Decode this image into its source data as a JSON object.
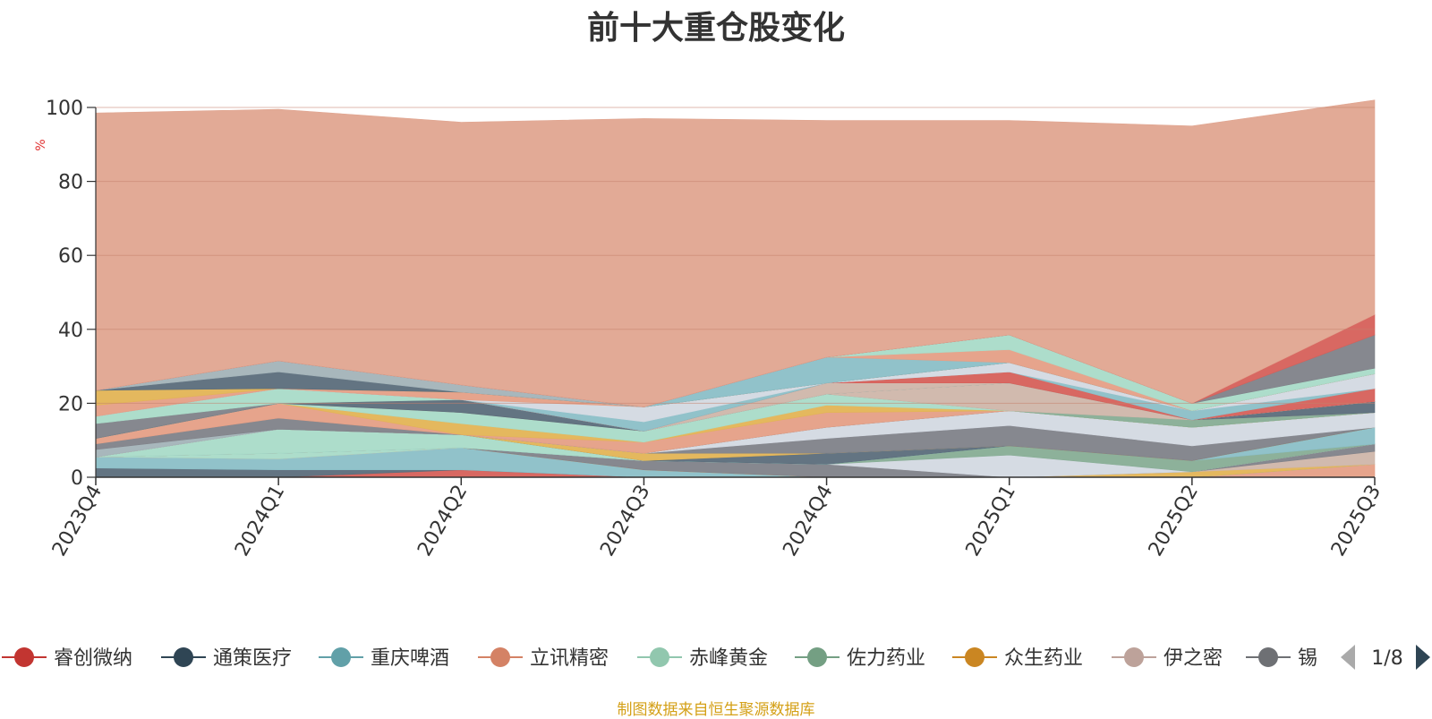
{
  "title": "前十大重仓股变化",
  "source_note": "制图数据来自恒生聚源数据库",
  "chart_data": {
    "type": "area",
    "stacked": true,
    "xlabel": "",
    "ylabel": "%",
    "ylim": [
      0,
      100
    ],
    "yticks": [
      0,
      20,
      40,
      60,
      80,
      100
    ],
    "grid": true,
    "categories": [
      "2023Q4",
      "2024Q1",
      "2024Q2",
      "2024Q3",
      "2024Q4",
      "2025Q1",
      "2025Q2",
      "2025Q3"
    ],
    "series": [
      {
        "name": "睿创微纳",
        "color": "#d6605a",
        "values": [
          0,
          0,
          2,
          0,
          0,
          0,
          0,
          0
        ]
      },
      {
        "name": "通策医疗",
        "color": "#5b6d7b",
        "values": [
          2.5,
          2,
          0,
          0,
          0,
          0,
          0,
          0
        ]
      },
      {
        "name": "重庆啤酒",
        "color": "#8bbfc7",
        "values": [
          3,
          3,
          6,
          2,
          0,
          0,
          0,
          0
        ]
      },
      {
        "name": "立讯精密",
        "color": "#e59f86",
        "values": [
          0,
          0,
          0,
          0,
          0,
          0,
          0,
          3.5
        ]
      },
      {
        "name": "赤峰黄金",
        "color": "#a9dbc8",
        "values": [
          0,
          1.5,
          0,
          0,
          0,
          0,
          0,
          0
        ]
      },
      {
        "name": "佐力药业",
        "color": "#87ad95",
        "values": [
          0,
          0,
          0,
          0,
          0,
          0,
          0,
          0
        ]
      },
      {
        "name": "众生药业",
        "color": "#e3b455",
        "values": [
          0,
          0,
          0,
          0,
          0,
          0,
          1.5,
          0
        ]
      },
      {
        "name": "伊之密",
        "color": "#cfb6aa",
        "values": [
          0,
          0,
          0,
          0,
          0,
          0,
          0,
          3.5
        ]
      },
      {
        "name": "锡",
        "color": "#808289",
        "values": [
          0,
          0,
          0,
          2.5,
          3.5,
          0,
          0,
          2
        ]
      },
      {
        "color": "#d3d9e2",
        "values": [
          0,
          0,
          0,
          0,
          0,
          6,
          0,
          0
        ]
      },
      {
        "color": "#87ad95",
        "values": [
          0,
          0,
          0,
          0,
          0,
          2.5,
          3,
          0
        ]
      },
      {
        "color": "#8bbfc7",
        "values": [
          0,
          0,
          0,
          0,
          0,
          0,
          0,
          4.5
        ]
      },
      {
        "color": "#a9dbc8",
        "values": [
          0,
          6.5,
          3.5,
          0,
          0,
          0,
          0,
          0
        ]
      },
      {
        "color": "#5b6d7b",
        "values": [
          0,
          0,
          0,
          0,
          3,
          0,
          0,
          0
        ]
      },
      {
        "color": "#e3b455",
        "values": [
          0,
          0,
          0,
          2,
          0,
          0,
          0,
          0
        ]
      },
      {
        "color": "#808289",
        "values": [
          0,
          0,
          0,
          0,
          4,
          5.5,
          4,
          0
        ]
      },
      {
        "color": "#d3d9e2",
        "values": [
          0,
          0,
          0,
          0,
          3,
          4,
          5,
          4
        ]
      },
      {
        "color": "#a3b3b8",
        "values": [
          2,
          0,
          0,
          0,
          0,
          0,
          0,
          0
        ]
      },
      {
        "color": "#808289",
        "values": [
          1.5,
          3,
          0,
          0,
          0,
          0,
          0,
          0
        ]
      },
      {
        "color": "#e59f86",
        "values": [
          1.5,
          4,
          0,
          3,
          4,
          0,
          0,
          0
        ]
      },
      {
        "color": "#e3b455",
        "values": [
          0,
          0,
          3,
          0,
          2,
          0,
          0,
          0
        ]
      },
      {
        "color": "#a9dbc8",
        "values": [
          0,
          0,
          3,
          3,
          3,
          0,
          0,
          0
        ]
      },
      {
        "color": "#87ad95",
        "values": [
          0,
          0,
          0,
          0,
          0,
          0,
          2,
          0
        ]
      },
      {
        "color": "#cfb6aa",
        "values": [
          0,
          0,
          0,
          0,
          0,
          7.5,
          0,
          0
        ]
      },
      {
        "color": "#5b6d7b",
        "values": [
          0,
          0,
          3.5,
          0,
          0,
          0,
          0,
          3
        ]
      },
      {
        "color": "#808289",
        "values": [
          4,
          0,
          0,
          0,
          0,
          0,
          0,
          0
        ]
      },
      {
        "color": "#a9dbc8",
        "values": [
          2,
          4,
          0,
          0,
          0,
          0,
          0,
          0
        ]
      },
      {
        "color": "#cfb6aa",
        "values": [
          0,
          0,
          0,
          0,
          3,
          0,
          0,
          0
        ]
      },
      {
        "color": "#d6605a",
        "values": [
          0,
          0,
          0,
          0,
          0,
          3,
          0,
          3.5
        ]
      },
      {
        "color": "#8bbfc7",
        "values": [
          0,
          0,
          0,
          2.5,
          0,
          0,
          2.5,
          0
        ]
      },
      {
        "color": "#d3d9e2",
        "values": [
          0,
          0,
          0,
          4,
          0,
          2.5,
          0,
          4
        ]
      },
      {
        "color": "#e59f86",
        "values": [
          3,
          0,
          2,
          0,
          0,
          0,
          0,
          0
        ]
      },
      {
        "color": "#e3b455",
        "values": [
          4,
          0,
          0,
          0,
          0,
          0,
          0,
          0
        ]
      },
      {
        "color": "#5b6d7b",
        "values": [
          0,
          4.5,
          0,
          0,
          0,
          0,
          0,
          0
        ]
      },
      {
        "color": "#a3b3b8",
        "values": [
          0,
          3,
          2,
          0,
          0,
          0,
          0,
          0
        ]
      },
      {
        "color": "#8bbfc7",
        "values": [
          0,
          0,
          0,
          0,
          7,
          0,
          0,
          0
        ]
      },
      {
        "color": "#e59f86",
        "values": [
          0,
          0,
          0,
          0,
          0,
          3.5,
          0,
          0
        ]
      },
      {
        "color": "#a9dbc8",
        "values": [
          0,
          0,
          0,
          0,
          0,
          4,
          2,
          1.5
        ]
      },
      {
        "color": "#808289",
        "values": [
          0,
          0,
          0,
          0,
          0,
          0,
          0,
          9
        ]
      },
      {
        "color": "#d6605a",
        "values": [
          0,
          0,
          0,
          0,
          0,
          0,
          0,
          5.5
        ]
      },
      {
        "color": "#e0a590",
        "values": [
          75,
          68,
          71,
          78,
          64,
          58,
          75,
          58
        ]
      }
    ]
  },
  "legend": {
    "items": [
      {
        "label": "睿创微纳",
        "color": "#c23531"
      },
      {
        "label": "通策医疗",
        "color": "#2f4554"
      },
      {
        "label": "重庆啤酒",
        "color": "#61a0a8"
      },
      {
        "label": "立讯精密",
        "color": "#d48265"
      },
      {
        "label": "赤峰黄金",
        "color": "#91c7ae"
      },
      {
        "label": "佐力药业",
        "color": "#749f83"
      },
      {
        "label": "众生药业",
        "color": "#ca8622"
      },
      {
        "label": "伊之密",
        "color": "#bda29a"
      },
      {
        "label": "锡",
        "color": "#6e7074"
      }
    ],
    "page_label": "1/8",
    "prev_icon": "triangle-left-icon",
    "next_icon": "triangle-right-icon"
  }
}
